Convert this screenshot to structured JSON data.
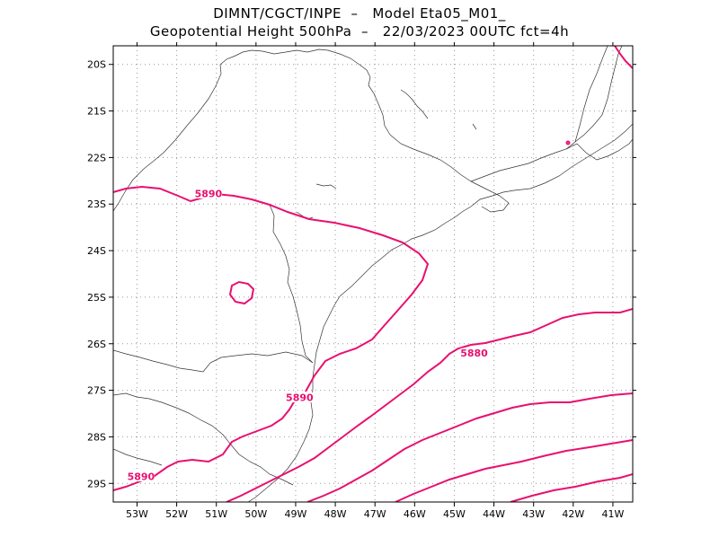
{
  "title": {
    "line1": "DIMNT/CGCT/INPE  –   Model Eta05_M01_",
    "line2": "Geopotential Height 500hPa  –   22/03/2023 00UTC fct=4h"
  },
  "map": {
    "lon_range": [
      -53.6,
      -40.5
    ],
    "lat_range": [
      -29.4,
      -19.6
    ],
    "grid": true,
    "lon_ticks": [
      "53W",
      "52W",
      "51W",
      "50W",
      "49W",
      "48W",
      "47W",
      "46W",
      "45W",
      "44W",
      "43W",
      "42W",
      "41W"
    ],
    "lat_ticks": [
      "20S",
      "21S",
      "22S",
      "23S",
      "24S",
      "25S",
      "26S",
      "27S",
      "28S",
      "29S"
    ],
    "contour_color": "#e8106f",
    "contour_labels": [
      {
        "text": "5890",
        "lon": -51.2,
        "lat": -22.82
      },
      {
        "text": "5880",
        "lon": -44.5,
        "lat": -26.25
      },
      {
        "text": "5890",
        "lon": -48.9,
        "lat": -27.2
      },
      {
        "text": "5890",
        "lon": -52.9,
        "lat": -28.9
      }
    ]
  }
}
